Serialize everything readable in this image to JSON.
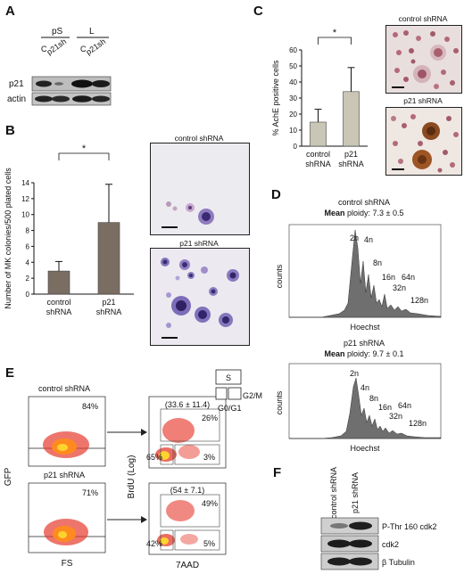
{
  "panels": {
    "A": {
      "letter": "A",
      "group_labels": [
        "pS",
        "L"
      ],
      "lane_labels": [
        "C",
        "p21sh",
        "C",
        "p21sh"
      ],
      "row_labels": [
        "p21",
        "actin"
      ]
    },
    "B": {
      "letter": "B",
      "image_captions": [
        "control shRNA",
        "p21 shRNA"
      ]
    },
    "C": {
      "letter": "C",
      "image_captions": [
        "control shRNA",
        "p21 shRNA"
      ]
    },
    "D": {
      "letter": "D",
      "histograms": [
        {
          "title": "control shRNA",
          "mean_label": "Mean",
          "mean_value": " ploidy: 7.3 ± 0.5",
          "ylabel": "counts",
          "xlabel": "Hoechst",
          "peaks": [
            "2n",
            "4n",
            "8n",
            "16n",
            "32n",
            "64n",
            "128n"
          ]
        },
        {
          "title": "p21 shRNA",
          "mean_label": "Mean",
          "mean_value": " ploidy: 9.7 ± 0.1",
          "ylabel": "counts",
          "xlabel": "Hoechst",
          "peaks": [
            "2n",
            "4n",
            "8n",
            "16n",
            "32n",
            "64n",
            "128n"
          ]
        }
      ]
    },
    "E": {
      "letter": "E",
      "left_titles": [
        "control shRNA",
        "p21 shRNA"
      ],
      "left_percents": [
        "84%",
        "71%"
      ],
      "left_ylabel": "GFP",
      "left_xlabel": "FS",
      "right_ylabel": "BrdU (Log)",
      "right_xlabel": "7AAD",
      "s_phase": [
        "(33.6 ± 11.4)",
        "(54 ± 7.1)"
      ],
      "s_percents": [
        "26%",
        "49%"
      ],
      "g0g1_percents": [
        "65%",
        "42%"
      ],
      "g2m_percents": [
        "3%",
        "5%"
      ],
      "legend": {
        "s": "S",
        "g2m": "G2/M",
        "g0g1": "G0/G1"
      }
    },
    "F": {
      "letter": "F",
      "lane_labels": [
        "control shRNA",
        "p21 shRNA"
      ],
      "row_labels": [
        "P-Thr 160 cdk2",
        "cdk2",
        "β Tubulin"
      ]
    }
  },
  "chart_data": [
    {
      "type": "bar",
      "categories": [
        "control shRNA",
        "p21 shRNA"
      ],
      "values": [
        2.9,
        9.0
      ],
      "errors": [
        1.2,
        4.8
      ],
      "ylabel": "Number of MK colonies/500 plated cells",
      "ylim": [
        0,
        14
      ],
      "yticks": [
        0,
        2,
        4,
        6,
        8,
        10,
        12,
        14
      ],
      "significance": "*",
      "colors": [
        "#7a6e63",
        "#7a6e63"
      ]
    },
    {
      "type": "bar",
      "categories": [
        "control shRNA",
        "p21 shRNA"
      ],
      "values": [
        15,
        34
      ],
      "errors": [
        8,
        15
      ],
      "ylabel": "% AchE positive cells",
      "ylim": [
        0,
        60
      ],
      "yticks": [
        0,
        10,
        20,
        30,
        40,
        50,
        60
      ],
      "significance": "*",
      "colors": [
        "#c9c6b6",
        "#c9c6b6"
      ]
    }
  ]
}
